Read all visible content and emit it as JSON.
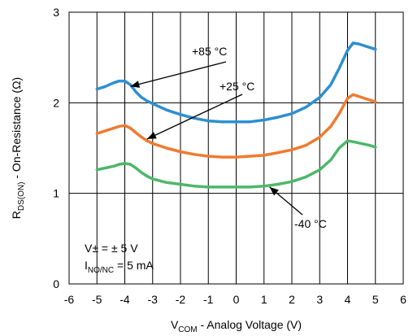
{
  "chart_data": {
    "type": "line",
    "title": "",
    "xlabel": {
      "main": "V",
      "sub": "COM",
      "rest": " - Analog Voltage (V)"
    },
    "ylabel": {
      "main": "R",
      "sub": "DS(ON)",
      "rest": " - On-Resistance (Ω)"
    },
    "xlim": [
      -6,
      6
    ],
    "ylim": [
      0,
      3
    ],
    "xticks": [
      "-6",
      "-5",
      "-4",
      "-3",
      "-2",
      "-1",
      "0",
      "1",
      "2",
      "3",
      "4",
      "5",
      "6"
    ],
    "yticks": [
      "0",
      "1",
      "2",
      "3"
    ],
    "grid": true,
    "conditions": [
      {
        "main": "V± = ± 5 V",
        "sub": "",
        "rest": ""
      },
      {
        "main": "I",
        "sub": "NO/NC",
        "rest": " = 5 mA"
      }
    ],
    "series": [
      {
        "name": "+85 °C",
        "color": "#2e8fd0",
        "points": [
          [
            -5,
            2.15
          ],
          [
            -4.7,
            2.18
          ],
          [
            -4.4,
            2.22
          ],
          [
            -4.2,
            2.24
          ],
          [
            -4,
            2.24
          ],
          [
            -3.8,
            2.2
          ],
          [
            -3.6,
            2.12
          ],
          [
            -3.4,
            2.06
          ],
          [
            -3.2,
            2.02
          ],
          [
            -3,
            1.99
          ],
          [
            -2.5,
            1.92
          ],
          [
            -2,
            1.87
          ],
          [
            -1.5,
            1.83
          ],
          [
            -1,
            1.8
          ],
          [
            -0.5,
            1.79
          ],
          [
            0,
            1.79
          ],
          [
            0.5,
            1.79
          ],
          [
            1,
            1.81
          ],
          [
            1.5,
            1.84
          ],
          [
            2,
            1.88
          ],
          [
            2.5,
            1.95
          ],
          [
            3,
            2.06
          ],
          [
            3.4,
            2.2
          ],
          [
            3.7,
            2.38
          ],
          [
            4,
            2.58
          ],
          [
            4.2,
            2.66
          ],
          [
            4.4,
            2.65
          ],
          [
            4.7,
            2.62
          ],
          [
            5,
            2.59
          ]
        ]
      },
      {
        "name": "+25 °C",
        "color": "#f07a30",
        "points": [
          [
            -5,
            1.66
          ],
          [
            -4.7,
            1.69
          ],
          [
            -4.4,
            1.72
          ],
          [
            -4.2,
            1.74
          ],
          [
            -4,
            1.75
          ],
          [
            -3.8,
            1.72
          ],
          [
            -3.6,
            1.67
          ],
          [
            -3.4,
            1.62
          ],
          [
            -3.2,
            1.58
          ],
          [
            -3,
            1.55
          ],
          [
            -2.5,
            1.5
          ],
          [
            -2,
            1.46
          ],
          [
            -1.5,
            1.43
          ],
          [
            -1,
            1.41
          ],
          [
            -0.5,
            1.4
          ],
          [
            0,
            1.4
          ],
          [
            0.5,
            1.41
          ],
          [
            1,
            1.42
          ],
          [
            1.5,
            1.45
          ],
          [
            2,
            1.48
          ],
          [
            2.5,
            1.53
          ],
          [
            3,
            1.62
          ],
          [
            3.4,
            1.74
          ],
          [
            3.7,
            1.88
          ],
          [
            4,
            2.05
          ],
          [
            4.2,
            2.09
          ],
          [
            4.4,
            2.07
          ],
          [
            4.7,
            2.04
          ],
          [
            5,
            2.01
          ]
        ]
      },
      {
        "name": "-40 °C",
        "color": "#4cb86a",
        "points": [
          [
            -5,
            1.26
          ],
          [
            -4.7,
            1.28
          ],
          [
            -4.4,
            1.3
          ],
          [
            -4.2,
            1.32
          ],
          [
            -4,
            1.33
          ],
          [
            -3.8,
            1.32
          ],
          [
            -3.6,
            1.28
          ],
          [
            -3.4,
            1.23
          ],
          [
            -3.2,
            1.19
          ],
          [
            -3,
            1.16
          ],
          [
            -2.5,
            1.12
          ],
          [
            -2,
            1.1
          ],
          [
            -1.5,
            1.08
          ],
          [
            -1,
            1.07
          ],
          [
            -0.5,
            1.07
          ],
          [
            0,
            1.07
          ],
          [
            0.5,
            1.07
          ],
          [
            1,
            1.08
          ],
          [
            1.5,
            1.1
          ],
          [
            2,
            1.13
          ],
          [
            2.5,
            1.18
          ],
          [
            3,
            1.26
          ],
          [
            3.4,
            1.37
          ],
          [
            3.7,
            1.5
          ],
          [
            4,
            1.58
          ],
          [
            4.2,
            1.57
          ],
          [
            4.5,
            1.55
          ],
          [
            4.8,
            1.53
          ],
          [
            5,
            1.51
          ]
        ]
      }
    ],
    "annotations": [
      {
        "text": "+85 °C",
        "series": "+85 °C",
        "arrow_to": [
          -3.8,
          2.18
        ]
      },
      {
        "text": "+25 °C",
        "series": "+25 °C",
        "arrow_to": [
          -3.2,
          1.6
        ]
      },
      {
        "text": "-40 °C",
        "series": "-40 °C",
        "arrow_to": [
          1.2,
          1.07
        ]
      }
    ]
  }
}
